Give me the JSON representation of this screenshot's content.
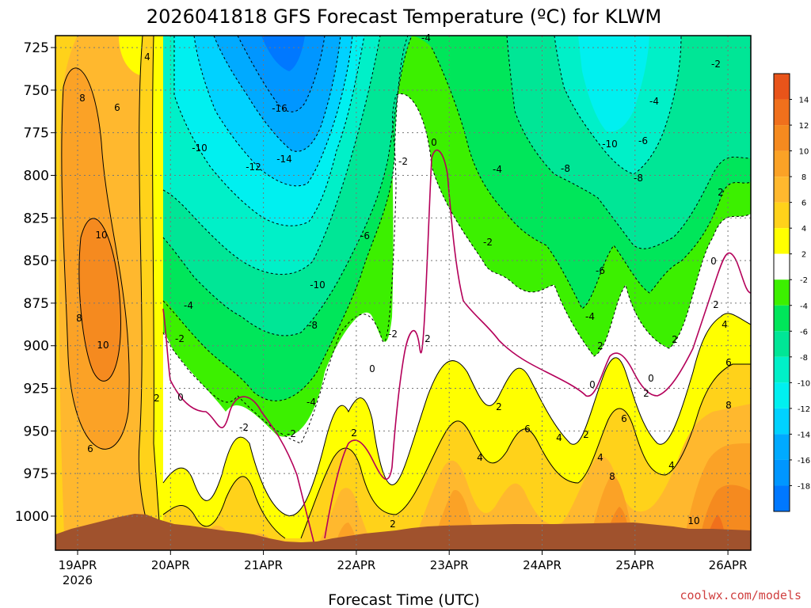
{
  "chart_data": {
    "type": "heatmap",
    "title": "2026041818 GFS Forecast Temperature (ºC) for KLWM",
    "xlabel": "Forecast Time (UTC)",
    "ylabel": "",
    "credit": "coolwx.com/models",
    "x_ticks": [
      "19APR",
      "20APR",
      "21APR",
      "22APR",
      "23APR",
      "24APR",
      "25APR",
      "26APR"
    ],
    "x_year": "2026",
    "y_ticks": [
      "725",
      "750",
      "775",
      "800",
      "825",
      "850",
      "875",
      "900",
      "925",
      "950",
      "975",
      "1000"
    ],
    "y_values": [
      725,
      750,
      775,
      800,
      825,
      850,
      875,
      900,
      925,
      950,
      975,
      1000
    ],
    "ylim": [
      1020,
      718
    ],
    "colorbar": {
      "ticks": [
        "14",
        "12",
        "10",
        "8",
        "6",
        "4",
        "2",
        "-2",
        "-4",
        "-6",
        "-8",
        "-10",
        "-12",
        "-14",
        "-16",
        "-18"
      ],
      "bins": [
        {
          "range": "14 to 16",
          "color": "#e8541a"
        },
        {
          "range": "12 to 14",
          "color": "#f0701c"
        },
        {
          "range": "10 to 12",
          "color": "#f58a1f"
        },
        {
          "range": "8 to 10",
          "color": "#fba226"
        },
        {
          "range": "6 to 8",
          "color": "#ffb82e"
        },
        {
          "range": "4 to 6",
          "color": "#ffd21a"
        },
        {
          "range": "2 to 4",
          "color": "#ffff00"
        },
        {
          "range": "-2 to 2",
          "color": "#ffffff"
        },
        {
          "range": "-4 to -2",
          "color": "#3cf000"
        },
        {
          "range": "-6 to -4",
          "color": "#00e65a"
        },
        {
          "range": "-8 to -6",
          "color": "#00e696"
        },
        {
          "range": "-10 to -8",
          "color": "#00f0c8"
        },
        {
          "range": "-12 to -10",
          "color": "#00f0f0"
        },
        {
          "range": "-14 to -12",
          "color": "#00d2ff"
        },
        {
          "range": "-16 to -14",
          "color": "#00aaff"
        },
        {
          "range": "-18 to -16",
          "color": "#0096ff"
        },
        {
          "range": "-20 to -18",
          "color": "#0078ff"
        }
      ]
    },
    "terrain_color": "#a0522d",
    "contour_labels": [
      {
        "text": "4"
      },
      {
        "text": "8"
      },
      {
        "text": "6"
      },
      {
        "text": "10"
      },
      {
        "text": "8"
      },
      {
        "text": "10"
      },
      {
        "text": "6"
      },
      {
        "text": "2"
      },
      {
        "text": "0"
      },
      {
        "text": "-16"
      },
      {
        "text": "-10"
      },
      {
        "text": "-12"
      },
      {
        "text": "-14"
      },
      {
        "text": "-4"
      },
      {
        "text": "-2"
      },
      {
        "text": "-6"
      },
      {
        "text": "-10"
      },
      {
        "text": "-8"
      },
      {
        "text": "-4"
      },
      {
        "text": "-2"
      },
      {
        "text": "-2"
      },
      {
        "text": "2"
      },
      {
        "text": "-4"
      },
      {
        "text": "0"
      },
      {
        "text": "-2"
      },
      {
        "text": "2"
      },
      {
        "text": "0"
      },
      {
        "text": "2"
      },
      {
        "text": "-4"
      },
      {
        "text": "-8"
      },
      {
        "text": "-2"
      },
      {
        "text": "-6"
      },
      {
        "text": "-4"
      },
      {
        "text": "-10"
      },
      {
        "text": "-6"
      },
      {
        "text": "-8"
      },
      {
        "text": "-4"
      },
      {
        "text": "4"
      },
      {
        "text": "2"
      },
      {
        "text": "6"
      },
      {
        "text": "4"
      },
      {
        "text": "2"
      },
      {
        "text": "0"
      },
      {
        "text": "2"
      },
      {
        "text": "2"
      },
      {
        "text": "0"
      },
      {
        "text": "2"
      },
      {
        "text": "6"
      },
      {
        "text": "4"
      },
      {
        "text": "8"
      },
      {
        "text": "4"
      },
      {
        "text": "-2"
      },
      {
        "text": "2"
      },
      {
        "text": "0"
      },
      {
        "text": "2"
      },
      {
        "text": "4"
      },
      {
        "text": "6"
      },
      {
        "text": "8"
      },
      {
        "text": "10"
      },
      {
        "text": "-2"
      }
    ]
  }
}
